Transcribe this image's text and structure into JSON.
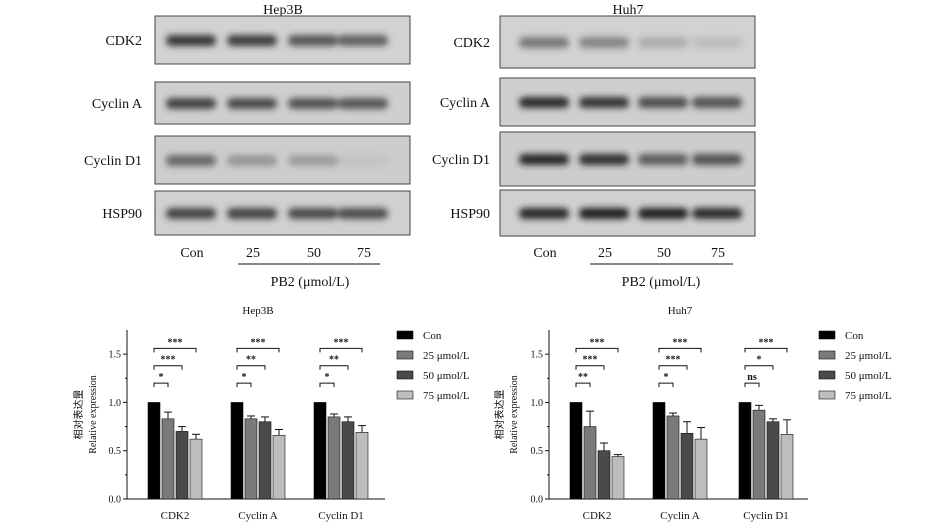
{
  "western_blots": [
    {
      "title": "Hep3B",
      "proteins": [
        "CDK2",
        "Cyclin A",
        "Cyclin D1",
        "HSP90"
      ],
      "lanes": [
        "Con",
        "25",
        "50",
        "75"
      ],
      "treatment_label": "PB2 (μmol/L)"
    },
    {
      "title": "Huh7",
      "proteins": [
        "CDK2",
        "Cyclin A",
        "Cyclin D1",
        "HSP90"
      ],
      "lanes": [
        "Con",
        "25",
        "50",
        "75"
      ],
      "treatment_label": "PB2 (μmol/L)"
    }
  ],
  "chart_data": [
    {
      "type": "bar",
      "title": "Hep3B",
      "ylabel": [
        "相对表达量",
        "Relative expression"
      ],
      "ylim": [
        0,
        1.75
      ],
      "yticks": [
        "0.0",
        "0.5",
        "1.0",
        "1.5"
      ],
      "categories": [
        "CDK2",
        "Cyclin A",
        "Cyclin D1"
      ],
      "series": [
        {
          "name": "Con",
          "color": "#000000",
          "values": [
            1.0,
            1.0,
            1.0
          ],
          "errors": [
            0,
            0,
            0
          ]
        },
        {
          "name": "25 μmol/L",
          "color": "#7a7a7a",
          "values": [
            0.83,
            0.83,
            0.85
          ],
          "errors": [
            0.07,
            0.03,
            0.03
          ]
        },
        {
          "name": "50 μmol/L",
          "color": "#4a4a4a",
          "values": [
            0.7,
            0.8,
            0.8
          ],
          "errors": [
            0.05,
            0.05,
            0.05
          ]
        },
        {
          "name": "75 μmol/L",
          "color": "#bdbdbd",
          "values": [
            0.62,
            0.66,
            0.69
          ],
          "errors": [
            0.05,
            0.06,
            0.07
          ]
        }
      ],
      "significance": [
        [
          "*",
          "***",
          "***"
        ],
        [
          "*",
          "**",
          "***"
        ],
        [
          "*",
          "**",
          "***"
        ]
      ],
      "legend_position": "right"
    },
    {
      "type": "bar",
      "title": "Huh7",
      "ylabel": [
        "相对表达量",
        "Relative expression"
      ],
      "ylim": [
        0,
        1.75
      ],
      "yticks": [
        "0.0",
        "0.5",
        "1.0",
        "1.5"
      ],
      "categories": [
        "CDK2",
        "Cyclin A",
        "Cyclin D1"
      ],
      "series": [
        {
          "name": "Con",
          "color": "#000000",
          "values": [
            1.0,
            1.0,
            1.0
          ],
          "errors": [
            0,
            0,
            0
          ]
        },
        {
          "name": "25 μmol/L",
          "color": "#7a7a7a",
          "values": [
            0.75,
            0.86,
            0.92
          ],
          "errors": [
            0.16,
            0.03,
            0.05
          ]
        },
        {
          "name": "50 μmol/L",
          "color": "#4a4a4a",
          "values": [
            0.5,
            0.68,
            0.8
          ],
          "errors": [
            0.08,
            0.12,
            0.03
          ]
        },
        {
          "name": "75 μmol/L",
          "color": "#bdbdbd",
          "values": [
            0.44,
            0.62,
            0.67
          ],
          "errors": [
            0.02,
            0.12,
            0.15
          ]
        }
      ],
      "significance": [
        [
          "**",
          "***",
          "***"
        ],
        [
          "*",
          "***",
          "***"
        ],
        [
          "ns",
          "*",
          "***"
        ]
      ],
      "legend_position": "right"
    }
  ]
}
